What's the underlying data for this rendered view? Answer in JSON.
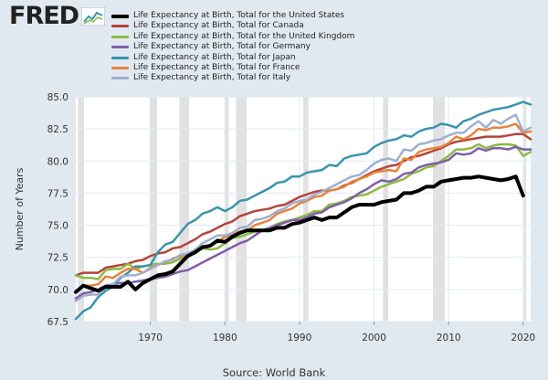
{
  "brand": {
    "logo_text": "FRED",
    "logo_icon": "line-chart-icon"
  },
  "source": "Source: World Bank",
  "colors": {
    "background": "#e1e9f0",
    "plot_background": "#ffffff",
    "recession": "#e1e1e1",
    "grid": "#e1e9f0"
  },
  "chart_data": {
    "type": "line",
    "title": "",
    "xlabel": "",
    "ylabel": "Number of Years",
    "xlim": [
      1960,
      2021
    ],
    "ylim": [
      67.5,
      85.0
    ],
    "yticks": [
      67.5,
      70.0,
      72.5,
      75.0,
      77.5,
      80.0,
      82.5,
      85.0
    ],
    "yticklabels": [
      "67.5",
      "70.0",
      "72.5",
      "75.0",
      "77.5",
      "80.0",
      "82.5",
      "85.0"
    ],
    "xticks": [
      1970,
      1980,
      1990,
      2000,
      2010,
      2020
    ],
    "xticklabels": [
      "1970",
      "1980",
      "1990",
      "2000",
      "2010",
      "2020"
    ],
    "grid": true,
    "legend_position": "top",
    "recessions": [
      [
        1960.3,
        1961.1
      ],
      [
        1969.9,
        1970.9
      ],
      [
        1973.9,
        1975.2
      ],
      [
        1980.0,
        1980.5
      ],
      [
        1981.5,
        1982.9
      ],
      [
        1990.5,
        1991.2
      ],
      [
        2001.2,
        2001.9
      ],
      [
        2007.9,
        2009.5
      ],
      [
        2020.1,
        2020.4
      ]
    ],
    "x": [
      1960,
      1961,
      1962,
      1963,
      1964,
      1965,
      1966,
      1967,
      1968,
      1969,
      1970,
      1971,
      1972,
      1973,
      1974,
      1975,
      1976,
      1977,
      1978,
      1979,
      1980,
      1981,
      1982,
      1983,
      1984,
      1985,
      1986,
      1987,
      1988,
      1989,
      1990,
      1991,
      1992,
      1993,
      1994,
      1995,
      1996,
      1997,
      1998,
      1999,
      2000,
      2001,
      2002,
      2003,
      2004,
      2005,
      2006,
      2007,
      2008,
      2009,
      2010,
      2011,
      2012,
      2013,
      2014,
      2015,
      2016,
      2017,
      2018,
      2019,
      2020,
      2021
    ],
    "series": [
      {
        "name": "Life Expectancy at Birth, Total for the United States",
        "color": "#000000",
        "width": 4,
        "values": [
          69.8,
          70.3,
          70.1,
          69.9,
          70.2,
          70.2,
          70.2,
          70.6,
          70.0,
          70.5,
          70.8,
          71.1,
          71.2,
          71.4,
          72.0,
          72.6,
          72.9,
          73.3,
          73.4,
          73.8,
          73.7,
          74.1,
          74.4,
          74.6,
          74.6,
          74.6,
          74.6,
          74.8,
          74.8,
          75.1,
          75.2,
          75.4,
          75.6,
          75.4,
          75.6,
          75.6,
          76.0,
          76.4,
          76.6,
          76.6,
          76.6,
          76.8,
          76.9,
          77.0,
          77.5,
          77.5,
          77.7,
          78.0,
          78.0,
          78.4,
          78.5,
          78.6,
          78.7,
          78.7,
          78.8,
          78.7,
          78.6,
          78.5,
          78.6,
          78.8,
          77.3,
          null
        ]
      },
      {
        "name": "Life Expectancy at Birth, Total for Canada",
        "color": "#b5443b",
        "width": 2.5,
        "values": [
          71.1,
          71.3,
          71.3,
          71.3,
          71.7,
          71.8,
          71.9,
          72.0,
          72.2,
          72.3,
          72.6,
          72.8,
          72.9,
          73.2,
          73.3,
          73.6,
          73.9,
          74.3,
          74.5,
          74.8,
          75.1,
          75.3,
          75.7,
          75.9,
          76.1,
          76.2,
          76.3,
          76.5,
          76.6,
          76.9,
          77.2,
          77.4,
          77.6,
          77.7,
          77.7,
          77.8,
          78.1,
          78.3,
          78.6,
          78.9,
          79.2,
          79.4,
          79.6,
          79.7,
          80.0,
          80.3,
          80.4,
          80.6,
          80.8,
          81.0,
          81.3,
          81.5,
          81.6,
          81.7,
          81.8,
          81.9,
          81.9,
          81.9,
          82.0,
          82.1,
          82.1,
          81.7
        ]
      },
      {
        "name": "Life Expectancy at Birth, Total for the United Kingdom",
        "color": "#8cba44",
        "width": 2.5,
        "values": [
          71.1,
          70.9,
          70.9,
          70.8,
          71.5,
          71.6,
          71.6,
          72.0,
          71.6,
          71.8,
          71.9,
          72.0,
          72.0,
          72.1,
          72.4,
          72.6,
          72.8,
          73.2,
          73.1,
          73.2,
          73.6,
          74.0,
          74.1,
          74.3,
          74.5,
          74.6,
          74.8,
          75.1,
          75.3,
          75.4,
          75.6,
          75.8,
          76.1,
          76.1,
          76.6,
          76.7,
          76.9,
          77.2,
          77.3,
          77.4,
          77.7,
          78.0,
          78.2,
          78.4,
          78.6,
          79.0,
          79.2,
          79.5,
          79.6,
          80.0,
          80.4,
          80.9,
          80.9,
          81.0,
          81.3,
          81.0,
          81.2,
          81.3,
          81.3,
          81.2,
          80.4,
          80.7
        ]
      },
      {
        "name": "Life Expectancy at Birth, Total for Germany",
        "color": "#7f5ea8",
        "width": 2.5,
        "values": [
          69.3,
          69.7,
          69.8,
          70.0,
          70.3,
          70.4,
          70.5,
          70.5,
          70.6,
          70.7,
          70.8,
          70.9,
          71.0,
          71.2,
          71.4,
          71.5,
          71.8,
          72.1,
          72.4,
          72.7,
          73.0,
          73.3,
          73.6,
          73.8,
          74.2,
          74.6,
          74.8,
          75.0,
          75.2,
          75.4,
          75.4,
          75.6,
          75.9,
          76.0,
          76.4,
          76.6,
          76.8,
          77.1,
          77.5,
          77.8,
          78.2,
          78.5,
          78.4,
          78.6,
          79.0,
          79.1,
          79.5,
          79.7,
          79.8,
          79.9,
          80.1,
          80.6,
          80.5,
          80.6,
          81.0,
          80.8,
          81.0,
          81.0,
          80.9,
          81.1,
          80.9,
          80.9
        ]
      },
      {
        "name": "Life Expectancy at Birth, Total for Japan",
        "color": "#3a94ad",
        "width": 2.5,
        "values": [
          67.7,
          68.3,
          68.6,
          69.4,
          69.9,
          70.2,
          70.9,
          71.3,
          71.8,
          71.8,
          71.9,
          72.9,
          73.5,
          73.7,
          74.4,
          75.1,
          75.4,
          75.9,
          76.1,
          76.4,
          76.1,
          76.4,
          76.9,
          77.0,
          77.3,
          77.6,
          77.9,
          78.3,
          78.4,
          78.8,
          78.8,
          79.1,
          79.2,
          79.3,
          79.7,
          79.6,
          80.2,
          80.4,
          80.5,
          80.6,
          81.1,
          81.4,
          81.6,
          81.7,
          82.0,
          81.9,
          82.3,
          82.5,
          82.6,
          82.9,
          82.8,
          82.6,
          83.1,
          83.3,
          83.6,
          83.8,
          84.0,
          84.1,
          84.2,
          84.4,
          84.6,
          84.4
        ]
      },
      {
        "name": "Life Expectancy at Birth, Total for France",
        "color": "#e8833a",
        "width": 2.5,
        "values": [
          69.9,
          70.3,
          70.3,
          70.4,
          71.0,
          70.9,
          71.3,
          71.6,
          71.6,
          71.3,
          71.7,
          71.9,
          72.1,
          72.4,
          72.6,
          72.6,
          72.9,
          73.3,
          73.4,
          73.7,
          74.1,
          74.3,
          74.5,
          74.6,
          75.0,
          75.2,
          75.4,
          75.9,
          76.1,
          76.3,
          76.7,
          76.9,
          77.2,
          77.3,
          77.7,
          77.8,
          78.0,
          78.4,
          78.6,
          78.8,
          79.1,
          79.2,
          79.3,
          79.2,
          80.2,
          80.1,
          80.7,
          80.9,
          81.0,
          81.1,
          81.4,
          81.9,
          81.7,
          82.0,
          82.5,
          82.4,
          82.6,
          82.6,
          82.7,
          82.9,
          82.2,
          82.3
        ]
      },
      {
        "name": "Life Expectancy at Birth, Total for Italy",
        "color": "#a0afd0",
        "width": 2.5,
        "values": [
          69.1,
          69.5,
          69.6,
          69.6,
          70.2,
          70.4,
          71.0,
          71.1,
          71.1,
          71.3,
          71.6,
          71.9,
          72.2,
          72.3,
          72.7,
          72.8,
          73.1,
          73.6,
          73.9,
          74.2,
          74.2,
          74.4,
          74.8,
          74.9,
          75.4,
          75.5,
          75.7,
          76.1,
          76.3,
          76.7,
          76.9,
          77.0,
          77.4,
          77.6,
          77.9,
          78.2,
          78.5,
          78.8,
          78.9,
          79.3,
          79.8,
          80.1,
          80.2,
          80.0,
          80.9,
          80.8,
          81.3,
          81.4,
          81.6,
          81.7,
          82.0,
          82.2,
          82.2,
          82.7,
          83.1,
          82.6,
          83.2,
          82.9,
          83.3,
          83.6,
          82.3,
          82.6
        ]
      }
    ]
  }
}
